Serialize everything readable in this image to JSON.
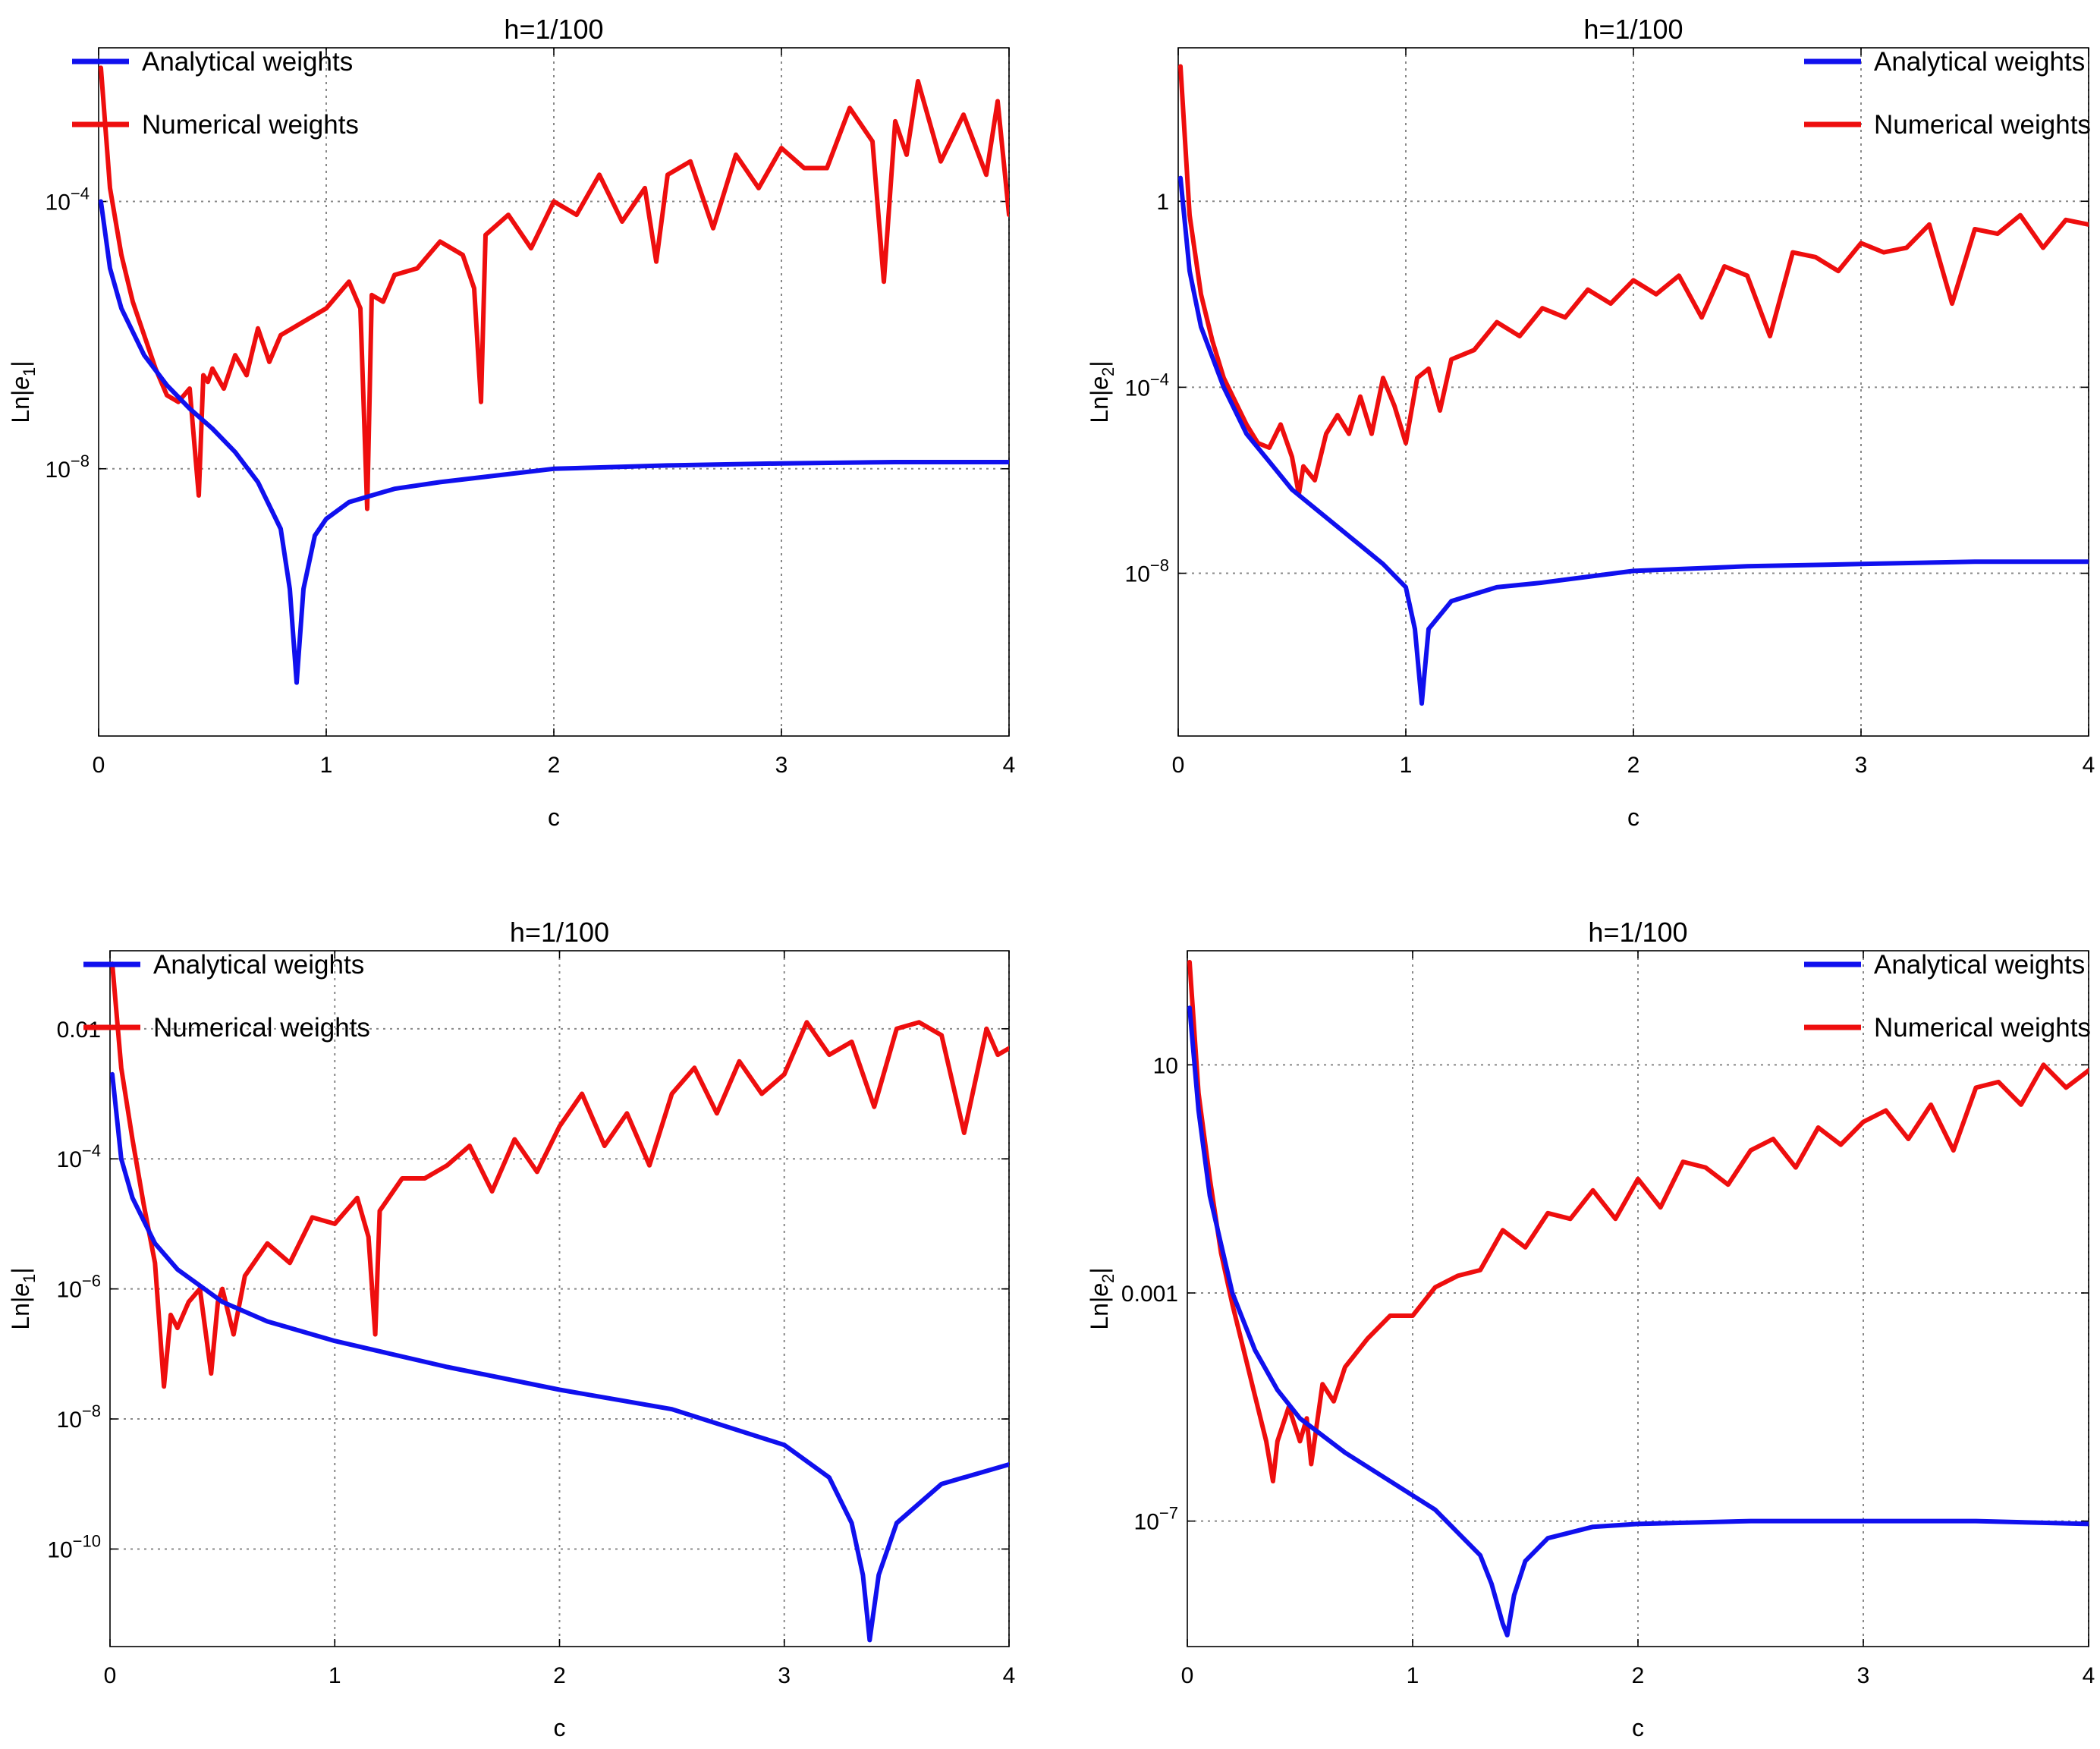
{
  "figure": {
    "colors": {
      "analytical": "#1010ee",
      "numerical": "#ee0e0e"
    }
  },
  "chart_data": [
    {
      "type": "line",
      "title": "h=1/100",
      "xlabel": "c",
      "ylabel_main": "Ln|",
      "ylabel_var": "e",
      "ylabel_sub": "1",
      "ylabel_close": "|",
      "yscale": "log",
      "xlim": [
        0,
        4
      ],
      "ylim_log10": [
        -12,
        -1.7
      ],
      "xticks": [
        0,
        1,
        2,
        3,
        4
      ],
      "xtick_labels": [
        "0",
        "1",
        "2",
        "3",
        "4"
      ],
      "yticks_log10": [
        -4,
        -8
      ],
      "ytick_mantissa": [
        "10",
        "10"
      ],
      "ytick_exponent": [
        "−4",
        "−8"
      ],
      "legend_position": "top-left",
      "series": [
        {
          "name": "Analytical weights",
          "color": "#1010ee",
          "x": [
            0.01,
            0.05,
            0.1,
            0.2,
            0.3,
            0.4,
            0.5,
            0.6,
            0.7,
            0.8,
            0.84,
            0.87,
            0.9,
            0.95,
            1.0,
            1.1,
            1.3,
            1.5,
            2.0,
            2.5,
            3.0,
            3.5,
            4.0
          ],
          "y_log10": [
            -4.0,
            -5.0,
            -5.6,
            -6.3,
            -6.75,
            -7.1,
            -7.4,
            -7.75,
            -8.2,
            -8.9,
            -9.8,
            -11.2,
            -9.8,
            -9.0,
            -8.75,
            -8.5,
            -8.3,
            -8.2,
            -8.0,
            -7.95,
            -7.92,
            -7.9,
            -7.9
          ]
        },
        {
          "name": "Numerical weights",
          "color": "#ee0e0e",
          "x": [
            0.01,
            0.05,
            0.1,
            0.15,
            0.2,
            0.25,
            0.3,
            0.35,
            0.4,
            0.44,
            0.46,
            0.48,
            0.5,
            0.55,
            0.6,
            0.65,
            0.7,
            0.75,
            0.8,
            0.9,
            1.0,
            1.1,
            1.15,
            1.18,
            1.2,
            1.25,
            1.3,
            1.4,
            1.5,
            1.6,
            1.65,
            1.68,
            1.7,
            1.8,
            1.9,
            2.0,
            2.1,
            2.2,
            2.3,
            2.4,
            2.45,
            2.5,
            2.6,
            2.7,
            2.8,
            2.9,
            3.0,
            3.1,
            3.2,
            3.3,
            3.4,
            3.45,
            3.5,
            3.55,
            3.6,
            3.7,
            3.8,
            3.9,
            3.95,
            4.0
          ],
          "y_log10": [
            -2.0,
            -3.8,
            -4.8,
            -5.5,
            -6.0,
            -6.5,
            -6.9,
            -7.0,
            -6.8,
            -8.4,
            -6.6,
            -6.7,
            -6.5,
            -6.8,
            -6.3,
            -6.6,
            -5.9,
            -6.4,
            -6.0,
            -5.8,
            -5.6,
            -5.2,
            -5.6,
            -8.6,
            -5.4,
            -5.5,
            -5.1,
            -5.0,
            -4.6,
            -4.8,
            -5.3,
            -7.0,
            -4.5,
            -4.2,
            -4.7,
            -4.0,
            -4.2,
            -3.6,
            -4.3,
            -3.8,
            -4.9,
            -3.6,
            -3.4,
            -4.4,
            -3.3,
            -3.8,
            -3.2,
            -3.5,
            -3.5,
            -2.6,
            -3.1,
            -5.2,
            -2.8,
            -3.3,
            -2.2,
            -3.4,
            -2.7,
            -3.6,
            -2.5,
            -4.2
          ]
        }
      ]
    },
    {
      "type": "line",
      "title": "h=1/100",
      "xlabel": "c",
      "ylabel_main": "Ln|",
      "ylabel_var": "e",
      "ylabel_sub": "2",
      "ylabel_close": "|",
      "yscale": "log",
      "xlim": [
        0,
        4
      ],
      "ylim_log10": [
        -11.5,
        3.3
      ],
      "xticks": [
        0,
        1,
        2,
        3,
        4
      ],
      "xtick_labels": [
        "0",
        "1",
        "2",
        "3",
        "4"
      ],
      "yticks_log10": [
        0,
        -4,
        -8
      ],
      "ytick_mantissa": [
        "1",
        "10",
        "10"
      ],
      "ytick_exponent": [
        "",
        "−4",
        "−8"
      ],
      "legend_position": "top-right",
      "series": [
        {
          "name": "Analytical weights",
          "color": "#1010ee",
          "x": [
            0.01,
            0.05,
            0.1,
            0.2,
            0.3,
            0.4,
            0.5,
            0.6,
            0.7,
            0.8,
            0.9,
            1.0,
            1.04,
            1.07,
            1.1,
            1.2,
            1.4,
            1.6,
            2.0,
            2.5,
            3.0,
            3.5,
            4.0
          ],
          "y_log10": [
            0.5,
            -1.5,
            -2.7,
            -4.0,
            -5.0,
            -5.6,
            -6.2,
            -6.6,
            -7.0,
            -7.4,
            -7.8,
            -8.3,
            -9.2,
            -10.8,
            -9.2,
            -8.6,
            -8.3,
            -8.2,
            -7.95,
            -7.85,
            -7.8,
            -7.75,
            -7.75
          ]
        },
        {
          "name": "Numerical weights",
          "color": "#ee0e0e",
          "x": [
            0.01,
            0.05,
            0.1,
            0.15,
            0.2,
            0.25,
            0.3,
            0.35,
            0.4,
            0.45,
            0.5,
            0.53,
            0.55,
            0.6,
            0.65,
            0.7,
            0.75,
            0.8,
            0.85,
            0.9,
            0.95,
            1.0,
            1.05,
            1.1,
            1.15,
            1.2,
            1.3,
            1.4,
            1.5,
            1.6,
            1.7,
            1.8,
            1.9,
            2.0,
            2.1,
            2.2,
            2.3,
            2.4,
            2.5,
            2.6,
            2.7,
            2.8,
            2.9,
            3.0,
            3.1,
            3.2,
            3.3,
            3.4,
            3.5,
            3.6,
            3.7,
            3.8,
            3.9,
            4.0
          ],
          "y_log10": [
            2.9,
            -0.3,
            -2.0,
            -3.0,
            -3.8,
            -4.3,
            -4.8,
            -5.2,
            -5.3,
            -4.8,
            -5.5,
            -6.3,
            -5.7,
            -6.0,
            -5.0,
            -4.6,
            -5.0,
            -4.2,
            -5.0,
            -3.8,
            -4.4,
            -5.2,
            -3.8,
            -3.6,
            -4.5,
            -3.4,
            -3.2,
            -2.6,
            -2.9,
            -2.3,
            -2.5,
            -1.9,
            -2.2,
            -1.7,
            -2.0,
            -1.6,
            -2.5,
            -1.4,
            -1.6,
            -2.9,
            -1.1,
            -1.2,
            -1.5,
            -0.9,
            -1.1,
            -1.0,
            -0.5,
            -2.2,
            -0.6,
            -0.7,
            -0.3,
            -1.0,
            -0.4,
            -0.5
          ]
        }
      ]
    },
    {
      "type": "line",
      "title": "h=1/100",
      "xlabel": "c",
      "ylabel_main": "Ln|",
      "ylabel_var": "e",
      "ylabel_sub": "1",
      "ylabel_close": "|",
      "yscale": "log",
      "xlim": [
        0,
        4
      ],
      "ylim_log10": [
        -11.5,
        -0.8
      ],
      "xticks": [
        0,
        1,
        2,
        3,
        4
      ],
      "xtick_labels": [
        "0",
        "1",
        "2",
        "3",
        "4"
      ],
      "yticks_log10": [
        -2,
        -4,
        -6,
        -8,
        -10
      ],
      "ytick_mantissa": [
        "0.01",
        "10",
        "10",
        "10",
        "10"
      ],
      "ytick_exponent": [
        "",
        "−4",
        "−6",
        "−8",
        "−10"
      ],
      "legend_position": "top-left",
      "series": [
        {
          "name": "Analytical weights",
          "color": "#1010ee",
          "x": [
            0.01,
            0.05,
            0.1,
            0.2,
            0.3,
            0.5,
            0.7,
            1.0,
            1.5,
            2.0,
            2.5,
            3.0,
            3.2,
            3.3,
            3.35,
            3.38,
            3.42,
            3.5,
            3.7,
            4.0
          ],
          "y_log10": [
            -2.7,
            -4.0,
            -4.6,
            -5.3,
            -5.7,
            -6.2,
            -6.5,
            -6.8,
            -7.2,
            -7.55,
            -7.85,
            -8.4,
            -8.9,
            -9.6,
            -10.4,
            -11.4,
            -10.4,
            -9.6,
            -9.0,
            -8.7
          ]
        },
        {
          "name": "Numerical weights",
          "color": "#ee0e0e",
          "x": [
            0.01,
            0.05,
            0.1,
            0.15,
            0.2,
            0.24,
            0.27,
            0.3,
            0.35,
            0.4,
            0.45,
            0.48,
            0.5,
            0.55,
            0.6,
            0.7,
            0.8,
            0.9,
            1.0,
            1.1,
            1.15,
            1.18,
            1.2,
            1.3,
            1.4,
            1.5,
            1.6,
            1.7,
            1.8,
            1.9,
            2.0,
            2.1,
            2.2,
            2.3,
            2.4,
            2.5,
            2.6,
            2.7,
            2.8,
            2.9,
            3.0,
            3.1,
            3.2,
            3.3,
            3.4,
            3.5,
            3.6,
            3.7,
            3.8,
            3.9,
            3.95,
            4.0
          ],
          "y_log10": [
            -1.0,
            -2.6,
            -3.7,
            -4.7,
            -5.6,
            -7.5,
            -6.4,
            -6.6,
            -6.2,
            -6.0,
            -7.3,
            -6.2,
            -6.0,
            -6.7,
            -5.8,
            -5.3,
            -5.6,
            -4.9,
            -5.0,
            -4.6,
            -5.2,
            -6.7,
            -4.8,
            -4.3,
            -4.3,
            -4.1,
            -3.8,
            -4.5,
            -3.7,
            -4.2,
            -3.5,
            -3.0,
            -3.8,
            -3.3,
            -4.1,
            -3.0,
            -2.6,
            -3.3,
            -2.5,
            -3.0,
            -2.7,
            -1.9,
            -2.4,
            -2.2,
            -3.2,
            -2.0,
            -1.9,
            -2.1,
            -3.6,
            -2.0,
            -2.4,
            -2.3
          ]
        }
      ]
    },
    {
      "type": "line",
      "title": "h=1/100",
      "xlabel": "c",
      "ylabel_main": "Ln|",
      "ylabel_var": "e",
      "ylabel_sub": "2",
      "ylabel_close": "|",
      "yscale": "log",
      "xlim": [
        0,
        4
      ],
      "ylim_log10": [
        -9.2,
        3.0
      ],
      "xticks": [
        0,
        1,
        2,
        3,
        4
      ],
      "xtick_labels": [
        "0",
        "1",
        "2",
        "3",
        "4"
      ],
      "yticks_log10": [
        1,
        -3,
        -7
      ],
      "ytick_mantissa": [
        "10",
        "0.001",
        "10"
      ],
      "ytick_exponent": [
        "",
        "",
        "−7"
      ],
      "legend_position": "top-right",
      "series": [
        {
          "name": "Analytical weights",
          "color": "#1010ee",
          "x": [
            0.01,
            0.05,
            0.1,
            0.2,
            0.3,
            0.4,
            0.5,
            0.7,
            0.9,
            1.1,
            1.2,
            1.3,
            1.35,
            1.4,
            1.42,
            1.45,
            1.5,
            1.6,
            1.8,
            2.0,
            2.5,
            3.0,
            3.5,
            4.0
          ],
          "y_log10": [
            2.0,
            0.2,
            -1.3,
            -3.0,
            -4.0,
            -4.7,
            -5.2,
            -5.8,
            -6.3,
            -6.8,
            -7.2,
            -7.6,
            -8.1,
            -8.8,
            -9.0,
            -8.3,
            -7.7,
            -7.3,
            -7.1,
            -7.05,
            -7.0,
            -7.0,
            -7.0,
            -7.05
          ]
        },
        {
          "name": "Numerical weights",
          "color": "#ee0e0e",
          "x": [
            0.01,
            0.05,
            0.1,
            0.15,
            0.2,
            0.25,
            0.3,
            0.35,
            0.38,
            0.4,
            0.45,
            0.5,
            0.53,
            0.55,
            0.6,
            0.65,
            0.7,
            0.8,
            0.9,
            1.0,
            1.1,
            1.2,
            1.3,
            1.4,
            1.5,
            1.6,
            1.7,
            1.8,
            1.9,
            2.0,
            2.1,
            2.2,
            2.3,
            2.4,
            2.5,
            2.6,
            2.7,
            2.8,
            2.9,
            3.0,
            3.1,
            3.2,
            3.3,
            3.4,
            3.5,
            3.6,
            3.7,
            3.8,
            3.9,
            4.0
          ],
          "y_log10": [
            2.8,
            0.5,
            -1.0,
            -2.3,
            -3.2,
            -4.0,
            -4.8,
            -5.6,
            -6.3,
            -5.6,
            -5.0,
            -5.6,
            -5.2,
            -6.0,
            -4.6,
            -4.9,
            -4.3,
            -3.8,
            -3.4,
            -3.4,
            -2.9,
            -2.7,
            -2.6,
            -1.9,
            -2.2,
            -1.6,
            -1.7,
            -1.2,
            -1.7,
            -1.0,
            -1.5,
            -0.7,
            -0.8,
            -1.1,
            -0.5,
            -0.3,
            -0.8,
            -0.1,
            -0.4,
            0.0,
            0.2,
            -0.3,
            0.3,
            -0.5,
            0.6,
            0.7,
            0.3,
            1.0,
            0.6,
            0.9
          ]
        }
      ]
    }
  ]
}
